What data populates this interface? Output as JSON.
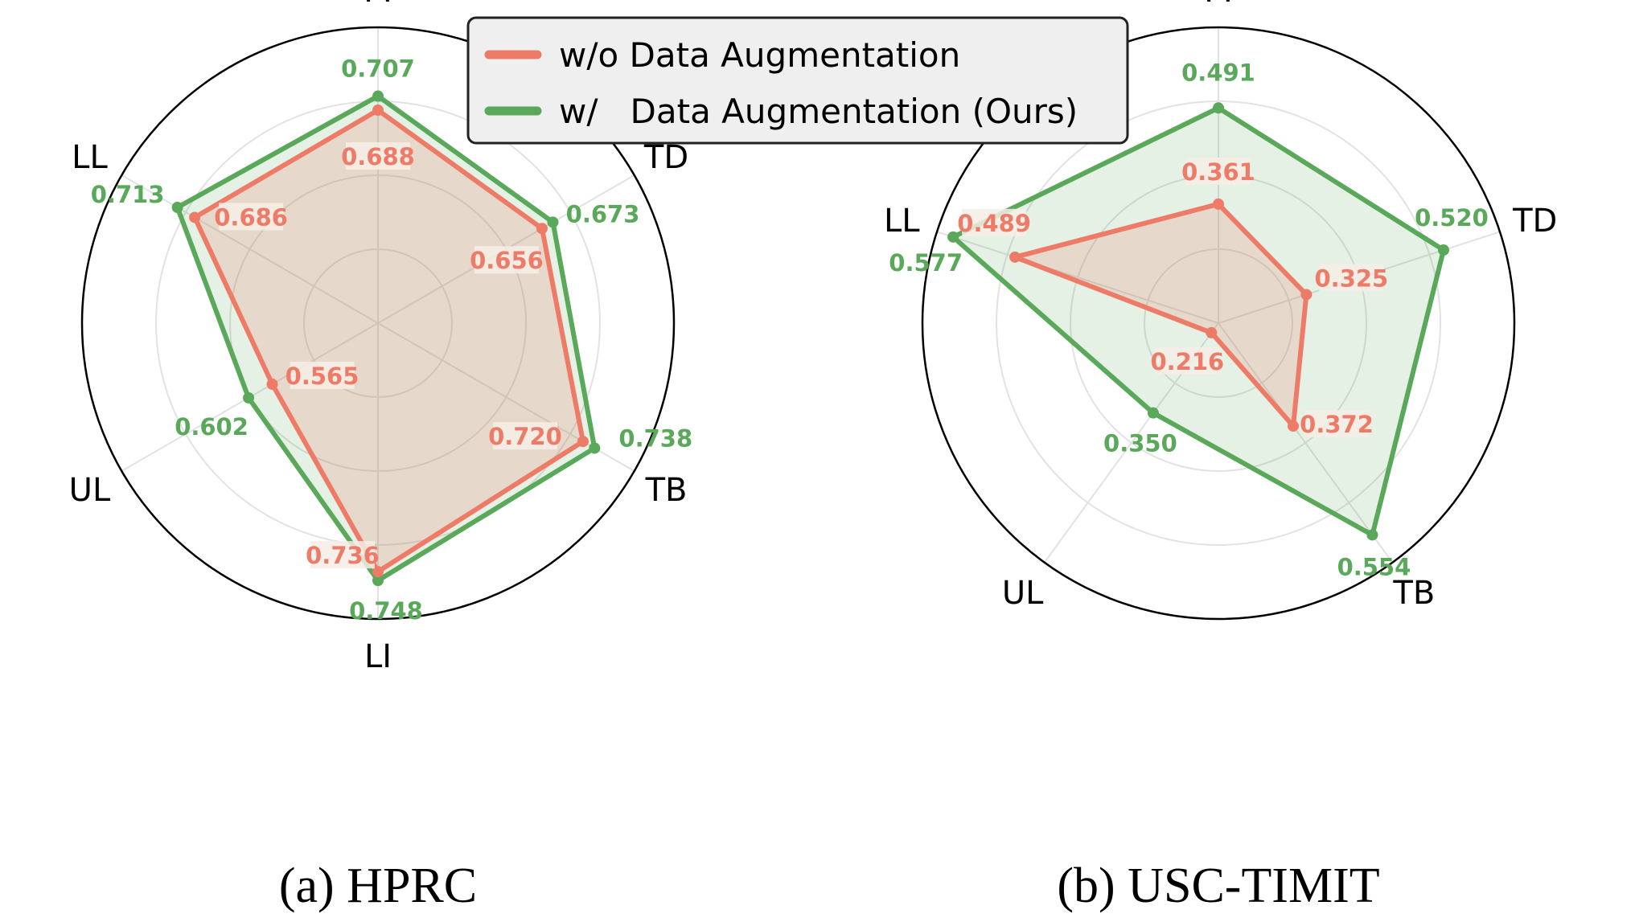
{
  "colors": {
    "without": "#ee7b68",
    "with": "#5aa85a",
    "grid": "#e2e2e2",
    "frame": "#000000",
    "label_bg": "#f6ede6"
  },
  "legend": {
    "items": [
      {
        "label": "w/o Data Augmentation",
        "color": "#ee7b68"
      },
      {
        "label": "w/   Data Augmentation (Ours)",
        "color": "#5aa85a"
      }
    ]
  },
  "chart_data": [
    {
      "type": "radar",
      "caption": "(a) HPRC",
      "axes": [
        "TT",
        "TD",
        "TB",
        "LI",
        "UL",
        "LL"
      ],
      "rlim": [
        0.4,
        0.8
      ],
      "grid": true,
      "series": [
        {
          "name": "w/o Data Augmentation",
          "values": [
            0.688,
            0.656,
            0.72,
            0.736,
            0.565,
            0.686
          ]
        },
        {
          "name": "w/   Data Augmentation (Ours)",
          "values": [
            0.707,
            0.673,
            0.738,
            0.748,
            0.602,
            0.713
          ]
        }
      ],
      "value_labels": {
        "without": [
          "0.688",
          "0.656",
          "0.720",
          "0.736",
          "0.565",
          "0.686"
        ],
        "with": [
          "0.707",
          "0.673",
          "0.738",
          "0.748",
          "0.602",
          "0.713"
        ]
      }
    },
    {
      "type": "radar",
      "caption": "(b) USC-TIMIT",
      "axes": [
        "TT",
        "TD",
        "TB",
        "UL",
        "LL"
      ],
      "rlim": [
        0.2,
        0.6
      ],
      "grid": true,
      "series": [
        {
          "name": "w/o Data Augmentation",
          "values": [
            0.361,
            0.325,
            0.372,
            0.216,
            0.489
          ]
        },
        {
          "name": "w/   Data Augmentation (Ours)",
          "values": [
            0.491,
            0.52,
            0.554,
            0.35,
            0.577
          ]
        }
      ],
      "value_labels": {
        "without": [
          "0.361",
          "0.325",
          "0.372",
          "0.216",
          "0.489"
        ],
        "with": [
          "0.491",
          "0.520",
          "0.554",
          "0.350",
          "0.577"
        ]
      }
    }
  ]
}
